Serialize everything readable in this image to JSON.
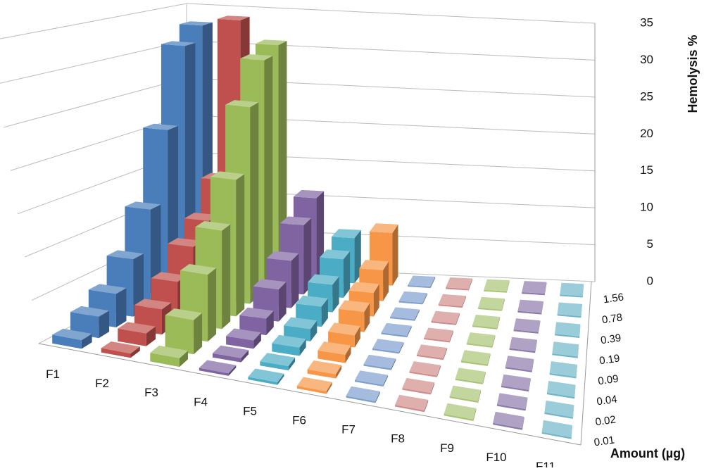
{
  "chart_data": {
    "type": "bar3d",
    "value_axis_label": "Hemolysis %",
    "depth_axis_label": "Amount  (µg)",
    "categories": [
      "0.01",
      "0.02",
      "0.04",
      "0.09",
      "0.19",
      "0.39",
      "0.78",
      "1.56"
    ],
    "series": [
      {
        "name": "F1",
        "color": "#4a7ebb",
        "values": [
          1,
          2.5,
          4,
          7,
          12,
          21,
          31,
          33
        ]
      },
      {
        "name": "F2",
        "color": "#c0504d",
        "values": [
          0.5,
          1.5,
          3,
          5,
          8,
          10,
          14,
          34
        ]
      },
      {
        "name": "F3",
        "color": "#9bbb59",
        "values": [
          1,
          4,
          8,
          12,
          17,
          25,
          30,
          31
        ]
      },
      {
        "name": "F4",
        "color": "#8064a2",
        "values": [
          0.3,
          0.5,
          1,
          2,
          4,
          6,
          9,
          11
        ]
      },
      {
        "name": "F5",
        "color": "#4bacc6",
        "values": [
          0.3,
          0.5,
          1,
          1.5,
          2.5,
          3.5,
          5,
          6
        ]
      },
      {
        "name": "F6",
        "color": "#f79646",
        "values": [
          0.3,
          0.5,
          1,
          1.5,
          2.5,
          3,
          4,
          7
        ]
      },
      {
        "name": "F7",
        "color": "#7f9fd0",
        "values": [
          0.2,
          0.2,
          0.2,
          0.2,
          0.2,
          0.2,
          0.2,
          0.2
        ]
      },
      {
        "name": "F8",
        "color": "#d08c8a",
        "values": [
          0.2,
          0.2,
          0.2,
          0.2,
          0.2,
          0.2,
          0.2,
          0.2
        ]
      },
      {
        "name": "F9",
        "color": "#a9c474",
        "values": [
          0.2,
          0.2,
          0.2,
          0.2,
          0.2,
          0.2,
          0.2,
          0.2
        ]
      },
      {
        "name": "F10",
        "color": "#8c7aaa",
        "values": [
          0.2,
          0.2,
          0.2,
          0.2,
          0.2,
          0.2,
          0.2,
          0.2
        ]
      },
      {
        "name": "F11",
        "color": "#6fb6c8",
        "values": [
          0.2,
          0.2,
          0.2,
          0.2,
          0.2,
          0.2,
          0.2,
          0.2
        ]
      }
    ],
    "zlim": [
      0,
      35
    ],
    "zticks": [
      0,
      5,
      10,
      15,
      20,
      25,
      30,
      35
    ],
    "grid": true
  }
}
